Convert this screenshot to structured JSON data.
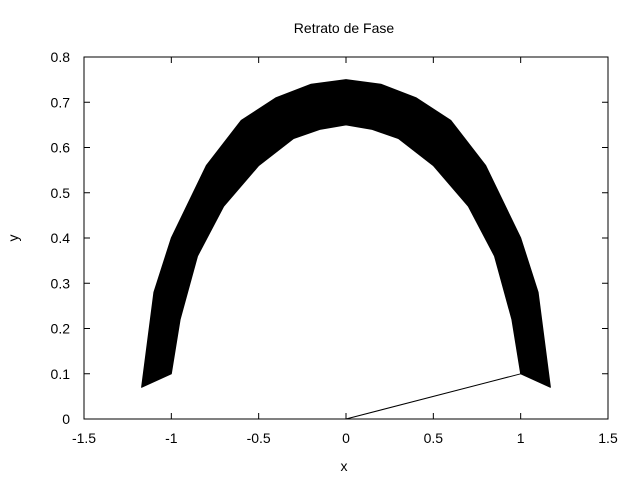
{
  "chart_data": {
    "type": "line",
    "title": "Retrato de Fase",
    "xlabel": "x",
    "ylabel": "y",
    "xlim": [
      -1.5,
      1.5
    ],
    "ylim": [
      0,
      0.8
    ],
    "grid": false,
    "xticks": [
      {
        "value": -1.5,
        "label": "-1.5"
      },
      {
        "value": -1,
        "label": "-1"
      },
      {
        "value": -0.5,
        "label": "-0.5"
      },
      {
        "value": 0,
        "label": "0"
      },
      {
        "value": 0.5,
        "label": "0.5"
      },
      {
        "value": 1,
        "label": "1"
      },
      {
        "value": 1.5,
        "label": "1.5"
      }
    ],
    "yticks": [
      {
        "value": 0,
        "label": "0"
      },
      {
        "value": 0.1,
        "label": "0.1"
      },
      {
        "value": 0.2,
        "label": "0.2"
      },
      {
        "value": 0.3,
        "label": "0.3"
      },
      {
        "value": 0.4,
        "label": "0.4"
      },
      {
        "value": 0.5,
        "label": "0.5"
      },
      {
        "value": 0.6,
        "label": "0.6"
      },
      {
        "value": 0.7,
        "label": "0.7"
      },
      {
        "value": 0.8,
        "label": "0.8"
      }
    ],
    "series": [
      {
        "style": "filled-band",
        "color": "#000000",
        "outer": [
          {
            "x": -1.17,
            "y": 0.07
          },
          {
            "x": -1.1,
            "y": 0.28
          },
          {
            "x": -1.0,
            "y": 0.4
          },
          {
            "x": -0.8,
            "y": 0.56
          },
          {
            "x": -0.6,
            "y": 0.66
          },
          {
            "x": -0.4,
            "y": 0.71
          },
          {
            "x": -0.2,
            "y": 0.74
          },
          {
            "x": 0.0,
            "y": 0.75
          },
          {
            "x": 0.2,
            "y": 0.74
          },
          {
            "x": 0.4,
            "y": 0.71
          },
          {
            "x": 0.6,
            "y": 0.66
          },
          {
            "x": 0.8,
            "y": 0.56
          },
          {
            "x": 1.0,
            "y": 0.4
          },
          {
            "x": 1.1,
            "y": 0.28
          },
          {
            "x": 1.17,
            "y": 0.07
          }
        ],
        "inner": [
          {
            "x": 1.0,
            "y": 0.1
          },
          {
            "x": 0.95,
            "y": 0.22
          },
          {
            "x": 0.85,
            "y": 0.36
          },
          {
            "x": 0.7,
            "y": 0.47
          },
          {
            "x": 0.5,
            "y": 0.56
          },
          {
            "x": 0.3,
            "y": 0.62
          },
          {
            "x": 0.15,
            "y": 0.64
          },
          {
            "x": 0.0,
            "y": 0.65
          },
          {
            "x": -0.15,
            "y": 0.64
          },
          {
            "x": -0.3,
            "y": 0.62
          },
          {
            "x": -0.5,
            "y": 0.56
          },
          {
            "x": -0.7,
            "y": 0.47
          },
          {
            "x": -0.85,
            "y": 0.36
          },
          {
            "x": -0.95,
            "y": 0.22
          },
          {
            "x": -1.0,
            "y": 0.1
          }
        ]
      },
      {
        "style": "line",
        "color": "#000000",
        "points": [
          {
            "x": 0.0,
            "y": 0.0
          },
          {
            "x": 1.0,
            "y": 0.1
          }
        ]
      }
    ]
  }
}
